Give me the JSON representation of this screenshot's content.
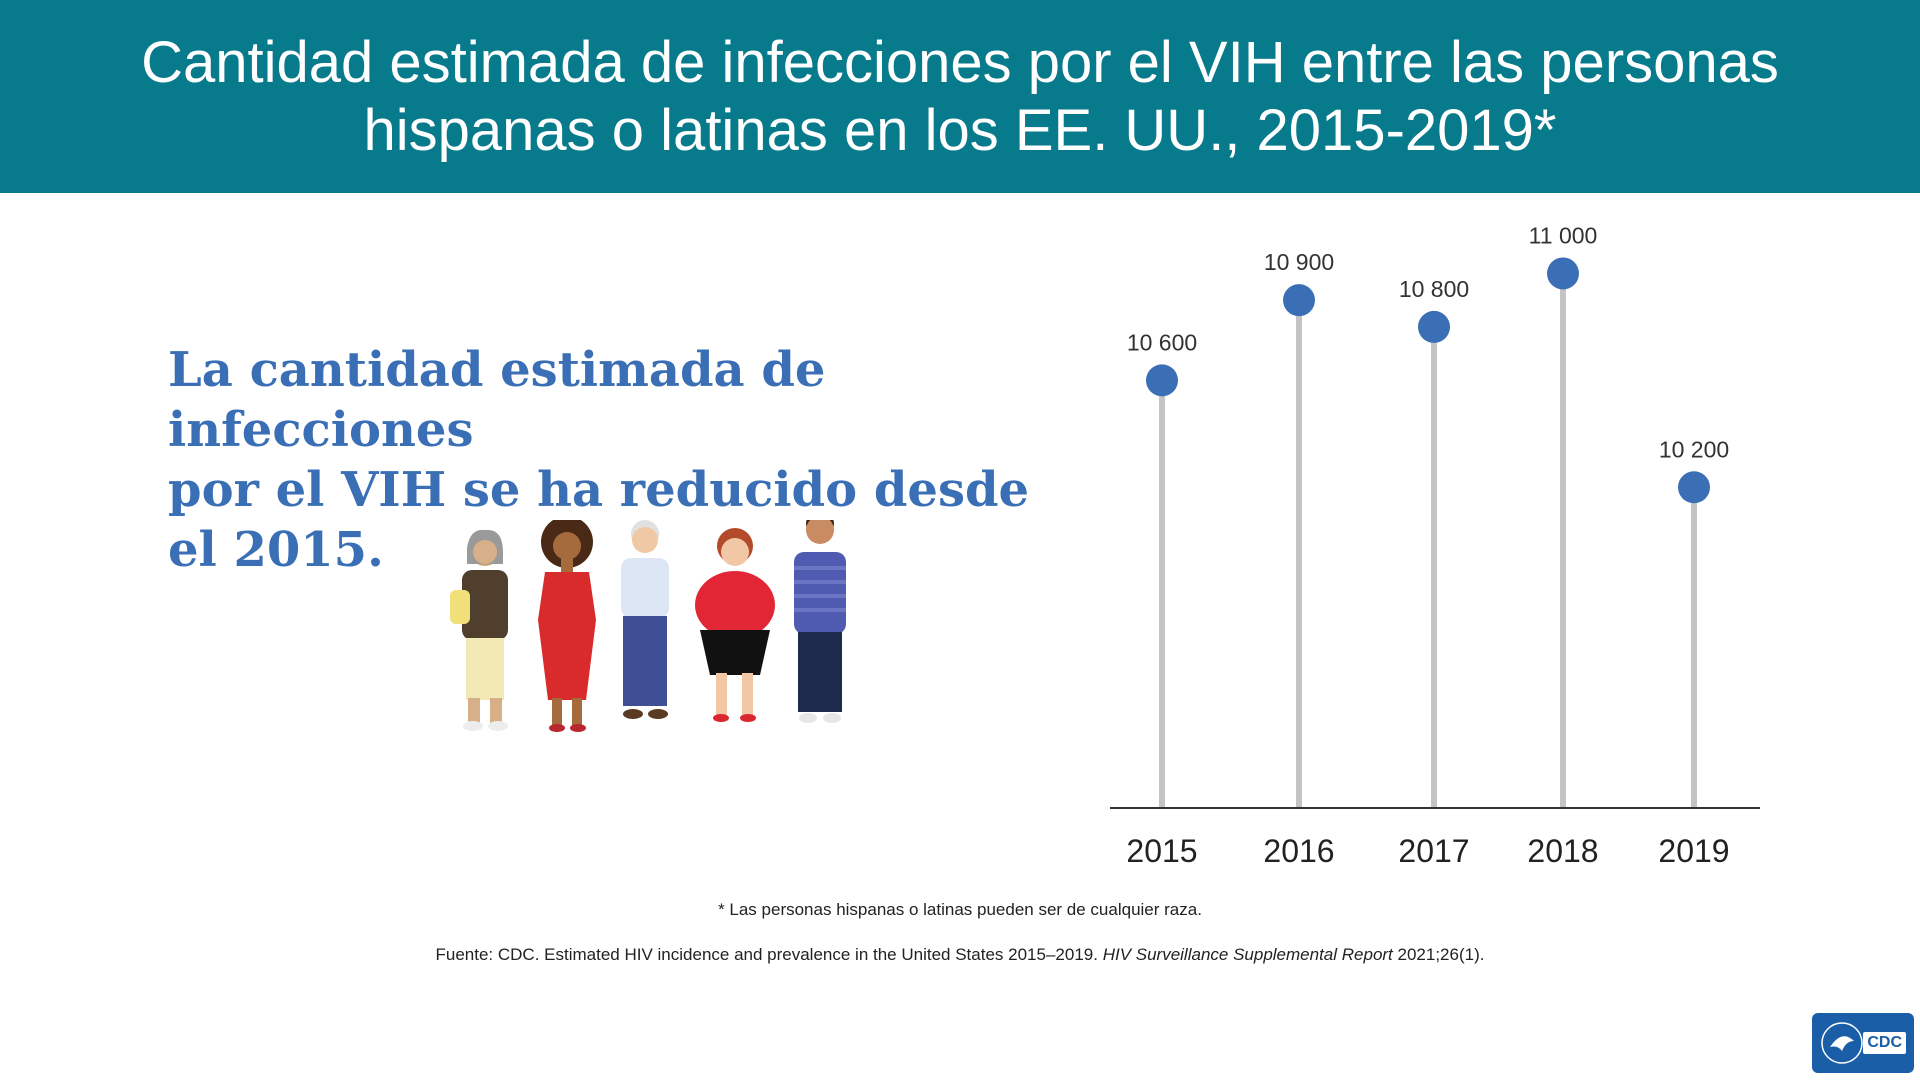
{
  "title": "Cantidad estimada de infecciones por el VIH entre las personas hispanas o latinas en los EE. UU., 2015-2019*",
  "headline": "La cantidad estimada de infecciones\npor el VIH se ha reducido desde\nel 2015.",
  "footnote": "* Las personas hispanas o latinas pueden ser de cualquier raza.",
  "source": {
    "prefix": "Fuente: CDC. Estimated HIV incidence and prevalence in the United States 2015–2019. ",
    "italic": "HIV Surveillance Supplemental Report",
    "suffix": " 2021;26(1)."
  },
  "logo": {
    "text": "CDC"
  },
  "colors": {
    "banner": "#077a8b",
    "headline": "#3a6fb5",
    "marker": "#3a6fb5",
    "stem": "#c4c4c4",
    "axis": "#333333"
  },
  "chart_data": {
    "type": "lollipop",
    "categories": [
      "2015",
      "2016",
      "2017",
      "2018",
      "2019"
    ],
    "values": [
      10600,
      10900,
      10800,
      11000,
      10200
    ],
    "value_labels": [
      "10 600",
      "10 900",
      "10 800",
      "11 000",
      "10 200"
    ],
    "ylim": [
      9000,
      11200
    ],
    "grid": false,
    "legend": "none"
  }
}
